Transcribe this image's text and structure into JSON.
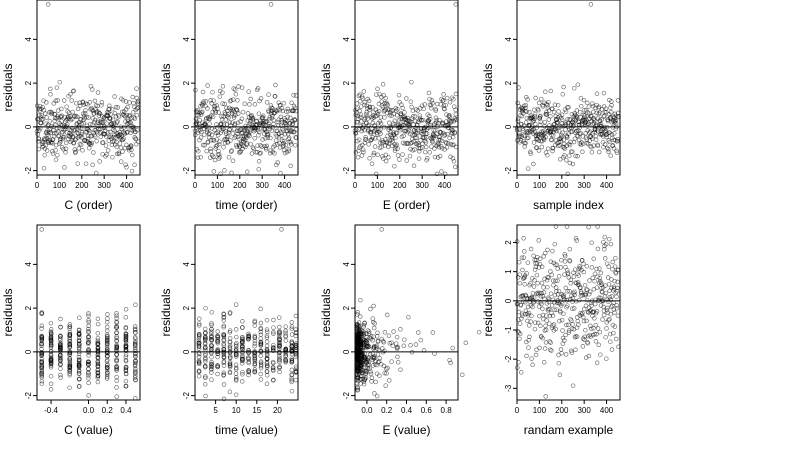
{
  "chart_data": [
    {
      "type": "scatter",
      "xlabel": "C (order)",
      "ylabel": "residuals",
      "xlim": [
        0,
        460
      ],
      "ylim": [
        -2.2,
        5.8
      ],
      "xticks": [
        0,
        100,
        200,
        300,
        400
      ],
      "xtick_labels": [
        "0",
        "100",
        "200",
        "300",
        "400"
      ],
      "yticks": [
        -2,
        0,
        2,
        4
      ],
      "ytick_labels": [
        "-2",
        "0",
        "2",
        "4"
      ],
      "hline": 0,
      "n_points": 460,
      "outlier": [
        50,
        5.6
      ],
      "x_distribution": "order",
      "y_stats": {
        "mean": 0,
        "sd": 0.75
      },
      "seed": 11
    },
    {
      "type": "scatter",
      "xlabel": "time (order)",
      "ylabel": "residuals",
      "xlim": [
        0,
        460
      ],
      "ylim": [
        -2.2,
        5.8
      ],
      "xticks": [
        0,
        100,
        200,
        300,
        400
      ],
      "xtick_labels": [
        "0",
        "100",
        "200",
        "300",
        "400"
      ],
      "yticks": [
        -2,
        0,
        2,
        4
      ],
      "ytick_labels": [
        "-2",
        "0",
        "2",
        "4"
      ],
      "hline": 0,
      "n_points": 460,
      "outlier": [
        340,
        5.6
      ],
      "x_distribution": "order",
      "y_stats": {
        "mean": 0,
        "sd": 0.75
      },
      "seed": 22
    },
    {
      "type": "scatter",
      "xlabel": "E (order)",
      "ylabel": "residuals",
      "xlim": [
        0,
        460
      ],
      "ylim": [
        -2.2,
        5.8
      ],
      "xticks": [
        0,
        100,
        200,
        300,
        400
      ],
      "xtick_labels": [
        "0",
        "100",
        "200",
        "300",
        "400"
      ],
      "yticks": [
        -2,
        0,
        2,
        4
      ],
      "ytick_labels": [
        "-2",
        "0",
        "2",
        "4"
      ],
      "hline": 0,
      "n_points": 460,
      "outlier": [
        450,
        5.6
      ],
      "x_distribution": "order",
      "y_stats": {
        "mean": 0,
        "sd": 0.75
      },
      "seed": 33
    },
    {
      "type": "scatter",
      "xlabel": "sample index",
      "ylabel": "residuals",
      "xlim": [
        0,
        460
      ],
      "ylim": [
        -2.2,
        5.8
      ],
      "xticks": [
        0,
        100,
        200,
        300,
        400
      ],
      "xtick_labels": [
        "0",
        "100",
        "200",
        "300",
        "400"
      ],
      "yticks": [
        -2,
        0,
        2,
        4
      ],
      "ytick_labels": [
        "-2",
        "0",
        "2",
        "4"
      ],
      "hline": 0,
      "n_points": 460,
      "outlier": [
        330,
        5.6
      ],
      "x_distribution": "order",
      "y_stats": {
        "mean": 0,
        "sd": 0.75
      },
      "seed": 44
    },
    {
      "type": "scatter",
      "xlabel": "C (value)",
      "ylabel": "residuals",
      "xlim": [
        -0.55,
        0.55
      ],
      "ylim": [
        -2.2,
        5.8
      ],
      "xticks": [
        -0.4,
        0.0,
        0.2,
        0.4
      ],
      "xtick_labels": [
        "-0.4",
        "0.0",
        "0.2",
        "0.4"
      ],
      "yticks": [
        -2,
        0,
        2,
        4
      ],
      "ytick_labels": [
        "-2",
        "0",
        "2",
        "4"
      ],
      "hline": 0,
      "n_points": 460,
      "outlier": [
        -0.5,
        5.6
      ],
      "x_distribution": "columns",
      "x_levels": [
        -0.5,
        -0.4,
        -0.3,
        -0.2,
        -0.1,
        0.0,
        0.1,
        0.2,
        0.3,
        0.4,
        0.5
      ],
      "y_stats": {
        "mean": 0,
        "sd": 0.75
      },
      "seed": 55
    },
    {
      "type": "scatter",
      "xlabel": "time (value)",
      "ylabel": "residuals",
      "xlim": [
        0,
        25
      ],
      "ylim": [
        -2.2,
        5.8
      ],
      "xticks": [
        5,
        10,
        15,
        20
      ],
      "xtick_labels": [
        "5",
        "10",
        "15",
        "20"
      ],
      "yticks": [
        -2,
        0,
        2,
        4
      ],
      "ytick_labels": [
        "-2",
        "0",
        "2",
        "4"
      ],
      "hline": 0,
      "n_points": 460,
      "outlier": [
        21,
        5.6
      ],
      "x_distribution": "columns",
      "x_levels": [
        1,
        2.5,
        4,
        5.5,
        7,
        8.5,
        10,
        11.5,
        13,
        14.5,
        16,
        17.5,
        19,
        20.5,
        22,
        23.5,
        24.5
      ],
      "y_stats": {
        "mean": 0,
        "sd": 0.75
      },
      "seed": 66
    },
    {
      "type": "scatter",
      "xlabel": "E (value)",
      "ylabel": "residuals",
      "xlim": [
        -0.12,
        0.92
      ],
      "ylim": [
        -2.2,
        5.8
      ],
      "xticks": [
        0.0,
        0.2,
        0.4,
        0.6,
        0.8
      ],
      "xtick_labels": [
        "0.0",
        "0.2",
        "0.4",
        "0.6",
        "0.8"
      ],
      "yticks": [
        -2,
        0,
        2,
        4
      ],
      "ytick_labels": [
        "-2",
        "0",
        "2",
        "4"
      ],
      "hline": 0,
      "n_points": 460,
      "outlier": [
        0.15,
        5.6
      ],
      "x_distribution": "skewed",
      "x_min": -0.1,
      "y_stats": {
        "mean": 0,
        "sd": 0.75
      },
      "seed": 77
    },
    {
      "type": "scatter",
      "xlabel": "randam example",
      "ylabel": "residuals",
      "xlim": [
        0,
        460
      ],
      "ylim": [
        -3.4,
        2.6
      ],
      "xticks": [
        0,
        100,
        200,
        300,
        400
      ],
      "xtick_labels": [
        "0",
        "100",
        "200",
        "300",
        "400"
      ],
      "yticks": [
        -3,
        -2,
        -1,
        0,
        1,
        2
      ],
      "ytick_labels": [
        "-3",
        "-2",
        "-1",
        "0",
        "1",
        "2"
      ],
      "hline": 0,
      "n_points": 460,
      "x_distribution": "order",
      "y_stats": {
        "mean": 0,
        "sd": 1.0
      },
      "seed": 88
    }
  ]
}
